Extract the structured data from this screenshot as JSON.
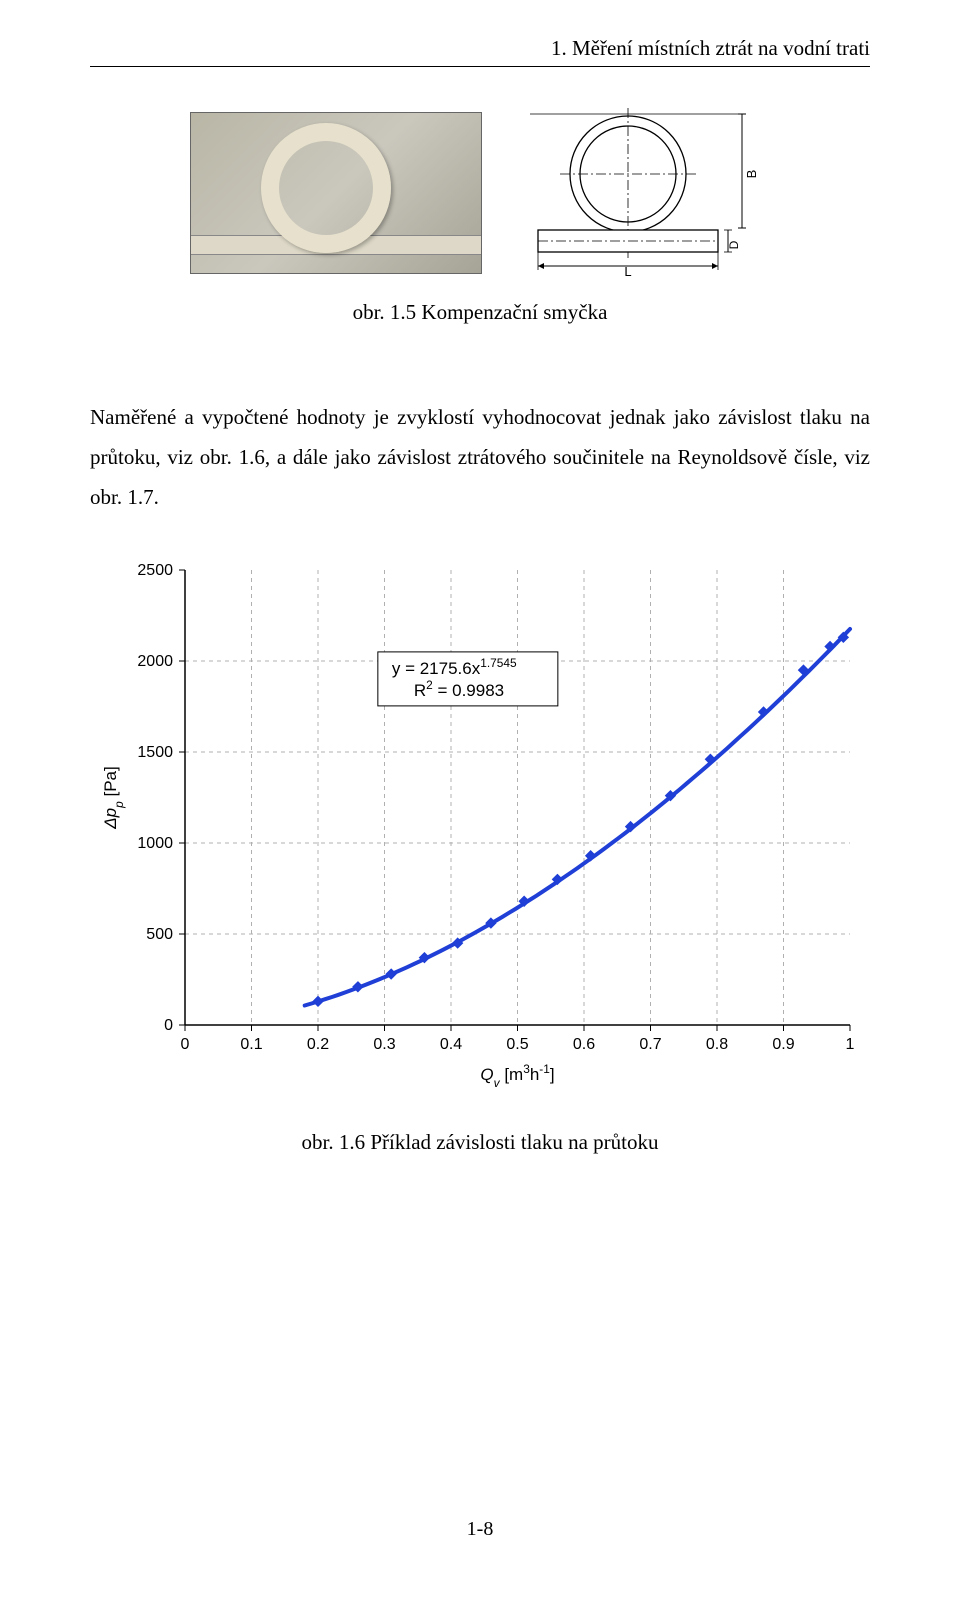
{
  "header": {
    "running_title": "1. Měření místních ztrát na vodní trati"
  },
  "figure_top": {
    "caption": "obr. 1.5  Kompenzační smyčka",
    "diagram_labels": {
      "B": "B",
      "L": "L",
      "D": "D"
    }
  },
  "paragraph": "Naměřené a vypočtené hodnoty je zvyklostí vyhodnocovat jednak jako závislost tlaku na průtoku, viz obr. 1.6, a dále jako závislost ztrátového součinitele na Reynoldsově čísle, viz obr. 1.7.",
  "chart": {
    "type": "scatter+power-fit",
    "xlabel": "Q_v   [m³h⁻¹]",
    "xlabel_plain_prefix": "Q",
    "xlabel_plain_sub": "v",
    "xlabel_unit": "[m",
    "xlabel_unit_sup": "3",
    "xlabel_unit_mid": "h",
    "xlabel_unit_sup2": "-1",
    "xlabel_unit_end": "]",
    "ylabel_prefix": "Δp",
    "ylabel_sub": "p",
    "ylabel_unit": "[Pa]",
    "xlim": [
      0,
      1.0
    ],
    "ylim": [
      0,
      2500
    ],
    "xtick_step": 0.1,
    "ytick_step": 500,
    "xticks": [
      "0",
      "0.1",
      "0.2",
      "0.3",
      "0.4",
      "0.5",
      "0.6",
      "0.7",
      "0.8",
      "0.9",
      "1"
    ],
    "yticks": [
      "0",
      "500",
      "1000",
      "1500",
      "2000",
      "2500"
    ],
    "grid_color": "#b0b0b0",
    "grid_dash": "4 4",
    "axis_color": "#000000",
    "background_color": "#ffffff",
    "marker_color": "#1f3fd6",
    "marker_size": 5,
    "line_color": "#1f3fd6",
    "line_width": 4,
    "fit_box": {
      "line1_pre": "y = 2175.6x",
      "line1_sup": "1.7545",
      "line2_pre": "R",
      "line2_sup": "2",
      "line2_rest": " = 0.9983",
      "border_color": "#000000",
      "fontsize": 17
    },
    "data_points": [
      {
        "x": 0.2,
        "y": 130
      },
      {
        "x": 0.26,
        "y": 210
      },
      {
        "x": 0.31,
        "y": 280
      },
      {
        "x": 0.36,
        "y": 370
      },
      {
        "x": 0.41,
        "y": 450
      },
      {
        "x": 0.46,
        "y": 560
      },
      {
        "x": 0.51,
        "y": 680
      },
      {
        "x": 0.56,
        "y": 800
      },
      {
        "x": 0.61,
        "y": 930
      },
      {
        "x": 0.67,
        "y": 1090
      },
      {
        "x": 0.73,
        "y": 1260
      },
      {
        "x": 0.79,
        "y": 1460
      },
      {
        "x": 0.87,
        "y": 1720
      },
      {
        "x": 0.93,
        "y": 1950
      },
      {
        "x": 0.97,
        "y": 2080
      },
      {
        "x": 0.99,
        "y": 2130
      }
    ],
    "fit_coef": 2175.6,
    "fit_exp": 1.7545,
    "label_fontsize": 17,
    "tick_fontsize": 16
  },
  "chart_caption": "obr. 1.6 Příklad závislosti tlaku na průtoku",
  "page_number": "1-8"
}
